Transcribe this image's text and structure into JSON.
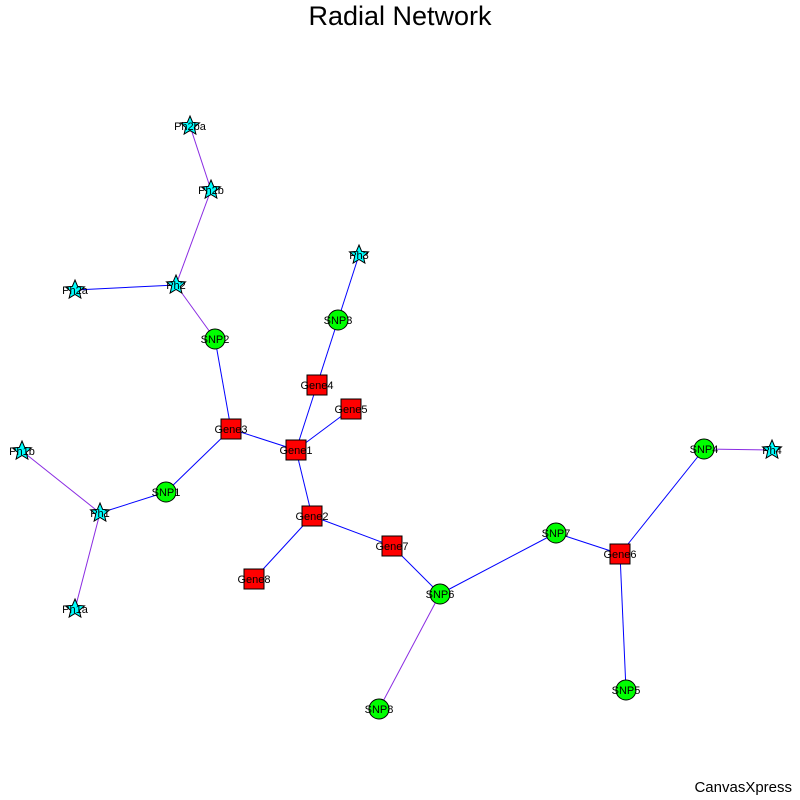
{
  "title": "Radial Network",
  "watermark": "CanvasXpress",
  "colors": {
    "gene": "#ff0000",
    "snp": "#00ff00",
    "phenotype": "#00ffff",
    "edge_blue": "#0000ff",
    "edge_purple": "#8a2be2",
    "outline": "#000000"
  },
  "nodes": [
    {
      "id": "Gene1",
      "label": "Gene1",
      "shape": "square",
      "color": "#ff0000"
    },
    {
      "id": "Gene2",
      "label": "Gene2",
      "shape": "square",
      "color": "#ff0000"
    },
    {
      "id": "Gene3",
      "label": "Gene3",
      "shape": "square",
      "color": "#ff0000"
    },
    {
      "id": "Gene4",
      "label": "Gene4",
      "shape": "square",
      "color": "#ff0000"
    },
    {
      "id": "Gene5",
      "label": "Gene5",
      "shape": "square",
      "color": "#ff0000"
    },
    {
      "id": "Gene6",
      "label": "Gene6",
      "shape": "square",
      "color": "#ff0000"
    },
    {
      "id": "Gene7",
      "label": "Gene7",
      "shape": "square",
      "color": "#ff0000"
    },
    {
      "id": "Gene8",
      "label": "Gene8",
      "shape": "square",
      "color": "#ff0000"
    },
    {
      "id": "SNP1",
      "label": "SNP1",
      "shape": "circle",
      "color": "#00ff00"
    },
    {
      "id": "SNP2",
      "label": "SNP2",
      "shape": "circle",
      "color": "#00ff00"
    },
    {
      "id": "SNP3",
      "label": "SNP3",
      "shape": "circle",
      "color": "#00ff00"
    },
    {
      "id": "SNP4",
      "label": "SNP4",
      "shape": "circle",
      "color": "#00ff00"
    },
    {
      "id": "SNP5",
      "label": "SNP5",
      "shape": "circle",
      "color": "#00ff00"
    },
    {
      "id": "SNP6",
      "label": "SNP6",
      "shape": "circle",
      "color": "#00ff00"
    },
    {
      "id": "SNP7",
      "label": "SNP7",
      "shape": "circle",
      "color": "#00ff00"
    },
    {
      "id": "SNP8",
      "label": "SNP8",
      "shape": "circle",
      "color": "#00ff00"
    },
    {
      "id": "Ph1",
      "label": "Ph1",
      "shape": "star",
      "color": "#00ffff"
    },
    {
      "id": "Ph1a",
      "label": "Ph1a",
      "shape": "star",
      "color": "#00ffff"
    },
    {
      "id": "Ph1b",
      "label": "Ph1b",
      "shape": "star",
      "color": "#00ffff"
    },
    {
      "id": "Ph2",
      "label": "Ph2",
      "shape": "star",
      "color": "#00ffff"
    },
    {
      "id": "Ph2a",
      "label": "Ph2a",
      "shape": "star",
      "color": "#00ffff"
    },
    {
      "id": "Ph2b",
      "label": "Ph2b",
      "shape": "star",
      "color": "#00ffff"
    },
    {
      "id": "Ph2ba",
      "label": "Ph2ba",
      "shape": "star",
      "color": "#00ffff"
    },
    {
      "id": "Ph3",
      "label": "Ph3",
      "shape": "star",
      "color": "#00ffff"
    },
    {
      "id": "Ph4",
      "label": "Ph4",
      "shape": "star",
      "color": "#00ffff"
    }
  ],
  "edges": [
    {
      "source": "Gene1",
      "target": "Gene2",
      "color": "#0000ff"
    },
    {
      "source": "Gene1",
      "target": "Gene3",
      "color": "#0000ff"
    },
    {
      "source": "Gene1",
      "target": "Gene4",
      "color": "#0000ff"
    },
    {
      "source": "Gene1",
      "target": "Gene5",
      "color": "#0000ff"
    },
    {
      "source": "Gene2",
      "target": "Gene7",
      "color": "#0000ff"
    },
    {
      "source": "Gene2",
      "target": "Gene8",
      "color": "#0000ff"
    },
    {
      "source": "Gene3",
      "target": "SNP1",
      "color": "#0000ff"
    },
    {
      "source": "Gene3",
      "target": "SNP2",
      "color": "#0000ff"
    },
    {
      "source": "Gene4",
      "target": "SNP3",
      "color": "#0000ff"
    },
    {
      "source": "Gene7",
      "target": "SNP6",
      "color": "#0000ff"
    },
    {
      "source": "SNP6",
      "target": "SNP7",
      "color": "#0000ff"
    },
    {
      "source": "SNP6",
      "target": "SNP8",
      "color": "#8a2be2"
    },
    {
      "source": "SNP7",
      "target": "Gene6",
      "color": "#0000ff"
    },
    {
      "source": "Gene6",
      "target": "SNP4",
      "color": "#0000ff"
    },
    {
      "source": "Gene6",
      "target": "SNP5",
      "color": "#0000ff"
    },
    {
      "source": "SNP4",
      "target": "Ph4",
      "color": "#8a2be2"
    },
    {
      "source": "SNP3",
      "target": "Ph3",
      "color": "#0000ff"
    },
    {
      "source": "SNP2",
      "target": "Ph2",
      "color": "#8a2be2"
    },
    {
      "source": "Ph2",
      "target": "Ph2a",
      "color": "#0000ff"
    },
    {
      "source": "Ph2",
      "target": "Ph2b",
      "color": "#8a2be2"
    },
    {
      "source": "Ph2b",
      "target": "Ph2ba",
      "color": "#8a2be2"
    },
    {
      "source": "SNP1",
      "target": "Ph1",
      "color": "#0000ff"
    },
    {
      "source": "Ph1",
      "target": "Ph1a",
      "color": "#8a2be2"
    },
    {
      "source": "Ph1",
      "target": "Ph1b",
      "color": "#8a2be2"
    }
  ]
}
